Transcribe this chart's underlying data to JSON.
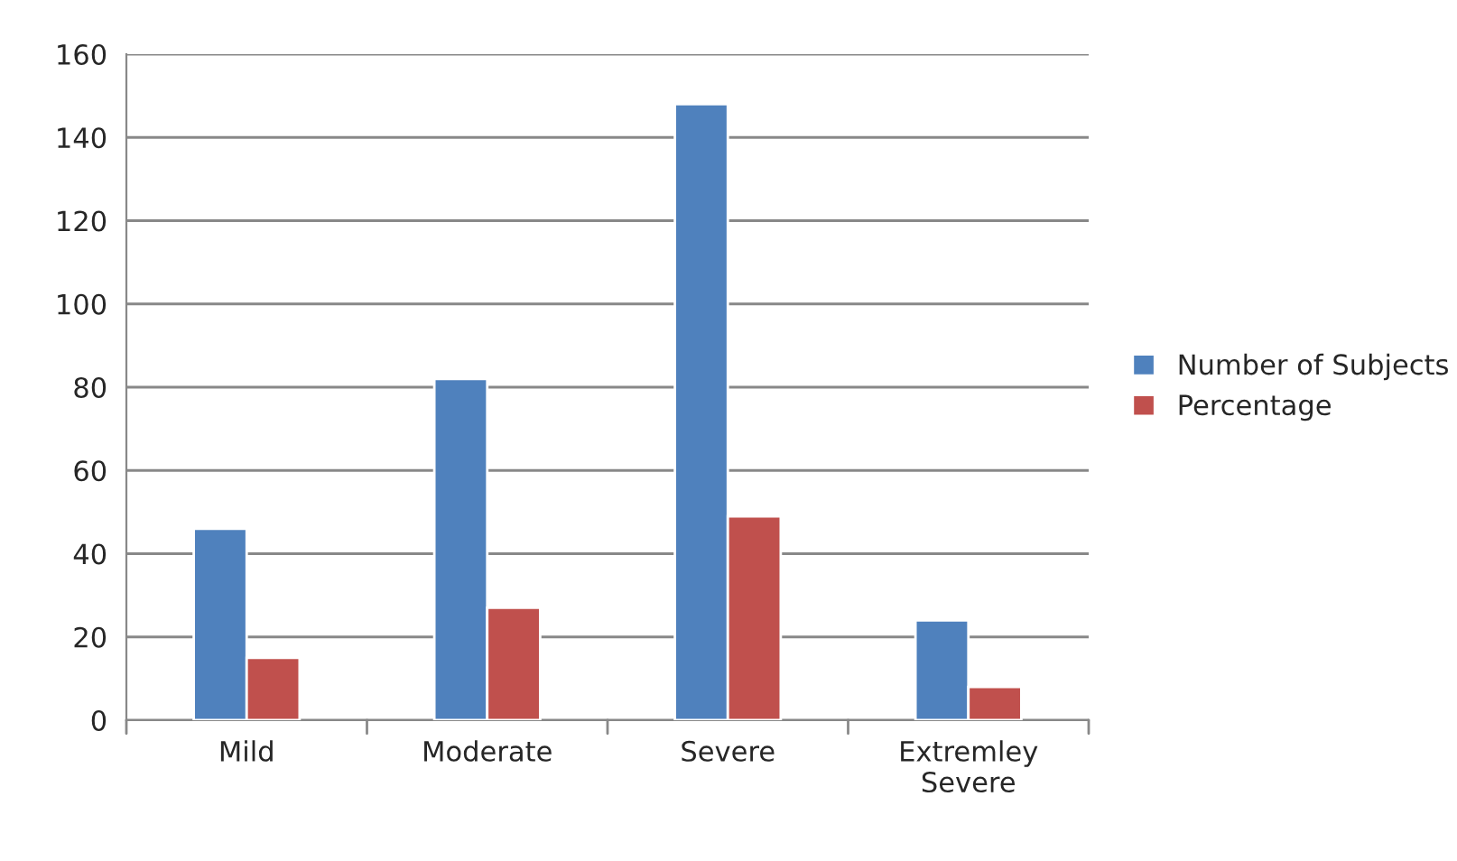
{
  "chart_data": {
    "type": "bar",
    "categories": [
      "Mild",
      "Moderate",
      "Severe",
      "Extremley\nSevere"
    ],
    "series": [
      {
        "name": "Number of Subjects",
        "color": "#4f81bd",
        "values": [
          46,
          82,
          148,
          24
        ]
      },
      {
        "name": "Percentage",
        "color": "#c0504d",
        "values": [
          15,
          27,
          49,
          8
        ]
      }
    ],
    "ylim": [
      0,
      160
    ],
    "yticks": [
      0,
      20,
      40,
      60,
      80,
      100,
      120,
      140,
      160
    ],
    "grid": "y",
    "legend": "right"
  }
}
